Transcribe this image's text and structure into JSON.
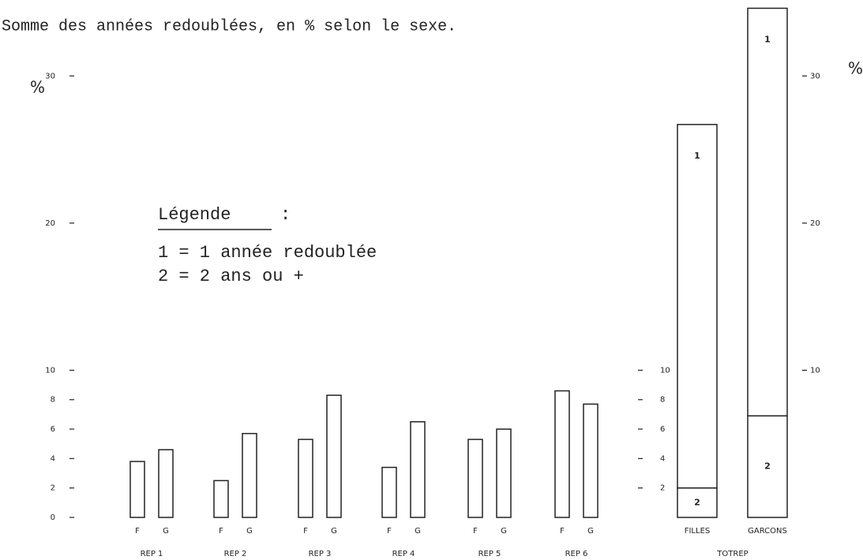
{
  "chart_data": [
    {
      "type": "bar",
      "title": "Somme des années redoublées, en % selon le sexe.",
      "ylabel": "%",
      "categories": [
        "REP 1",
        "REP 2",
        "REP 3",
        "REP 4",
        "REP 5",
        "REP 6"
      ],
      "series": [
        {
          "name": "F",
          "color": "#222222",
          "values": [
            3.8,
            2.5,
            5.3,
            3.4,
            5.3,
            8.6
          ]
        },
        {
          "name": "G",
          "color": "#222222",
          "values": [
            4.6,
            5.7,
            8.3,
            6.5,
            6.0,
            7.7
          ]
        }
      ],
      "ylim": [
        0,
        35
      ],
      "yticks": [
        0,
        2,
        4,
        6,
        8,
        10,
        20,
        30
      ],
      "y2ticks": [
        2,
        4,
        6,
        8,
        10
      ],
      "legend": {
        "title": "Légende",
        "entries": [
          "1 = 1 année redoublée",
          "2 = 2 ans ou +"
        ]
      }
    },
    {
      "type": "stacked_bar",
      "ylabel": "%",
      "xlabel": "TOTREP",
      "categories": [
        "FILLES",
        "GARCONS"
      ],
      "series": [
        {
          "name": "2",
          "color": "#222222",
          "values": [
            2.0,
            6.9
          ]
        },
        {
          "name": "1",
          "color": "#222222",
          "values": [
            24.7,
            27.7
          ]
        }
      ],
      "ylim": [
        0,
        35
      ],
      "yticks": [
        10,
        20,
        30
      ]
    }
  ]
}
